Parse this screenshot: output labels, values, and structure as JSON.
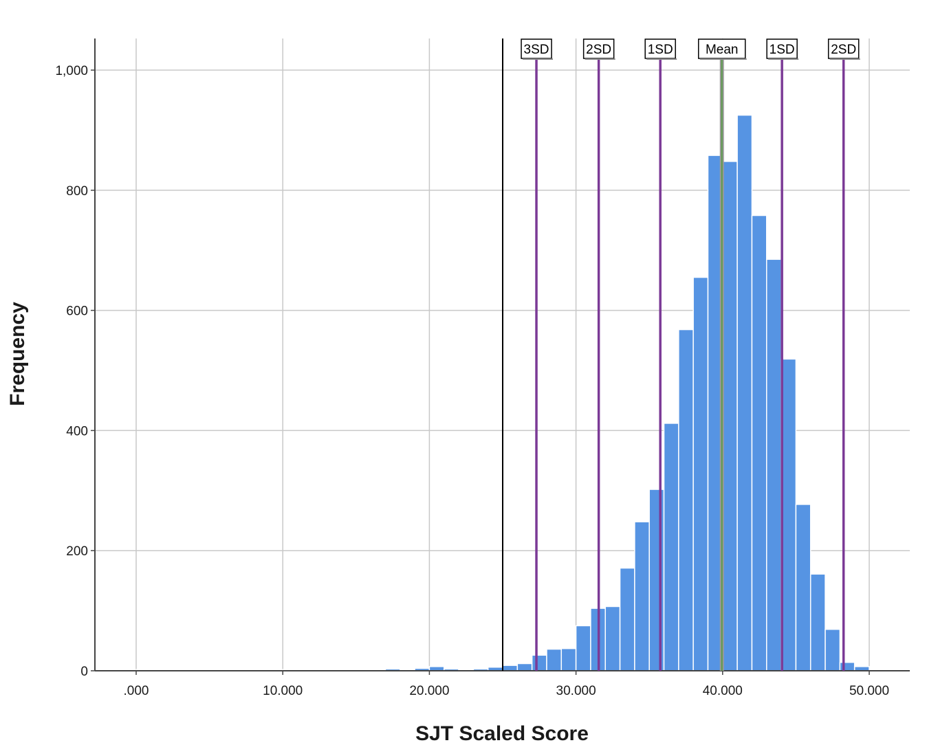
{
  "chart_data": {
    "type": "bar",
    "xlabel": "SJT Scaled Score",
    "ylabel": "Frequency",
    "xlim": [
      0,
      50000
    ],
    "ylim": [
      0,
      1000
    ],
    "x_ticks": [
      {
        "value": 0,
        "label": ".000"
      },
      {
        "value": 10000,
        "label": "10.000"
      },
      {
        "value": 20000,
        "label": "20.000"
      },
      {
        "value": 30000,
        "label": "30.000"
      },
      {
        "value": 40000,
        "label": "40.000"
      },
      {
        "value": 50000,
        "label": "50.000"
      }
    ],
    "y_ticks": [
      {
        "value": 0,
        "label": "0"
      },
      {
        "value": 200,
        "label": "200"
      },
      {
        "value": 400,
        "label": "400"
      },
      {
        "value": 600,
        "label": "600"
      },
      {
        "value": 800,
        "label": "800"
      },
      {
        "value": 1000,
        "label": "1,000"
      }
    ],
    "grid": true,
    "bar_color": "#5694e3",
    "bins": [
      {
        "x0": 0,
        "x1": 2000,
        "count": 2
      },
      {
        "x0": 5000,
        "x1": 10000,
        "count": 2
      },
      {
        "x0": 11000,
        "x1": 15000,
        "count": 2
      },
      {
        "x0": 16000,
        "x1": 17000,
        "count": 1
      },
      {
        "x0": 17000,
        "x1": 18000,
        "count": 3
      },
      {
        "x0": 18000,
        "x1": 19000,
        "count": 2
      },
      {
        "x0": 19000,
        "x1": 20000,
        "count": 4
      },
      {
        "x0": 20000,
        "x1": 21000,
        "count": 7
      },
      {
        "x0": 21000,
        "x1": 22000,
        "count": 3
      },
      {
        "x0": 22000,
        "x1": 23000,
        "count": 2
      },
      {
        "x0": 23000,
        "x1": 24000,
        "count": 3
      },
      {
        "x0": 24000,
        "x1": 25000,
        "count": 6
      },
      {
        "x0": 25000,
        "x1": 26000,
        "count": 9
      },
      {
        "x0": 26000,
        "x1": 27000,
        "count": 12
      },
      {
        "x0": 27000,
        "x1": 28000,
        "count": 26
      },
      {
        "x0": 28000,
        "x1": 29000,
        "count": 36
      },
      {
        "x0": 29000,
        "x1": 30000,
        "count": 37
      },
      {
        "x0": 30000,
        "x1": 31000,
        "count": 75
      },
      {
        "x0": 31000,
        "x1": 32000,
        "count": 104
      },
      {
        "x0": 32000,
        "x1": 33000,
        "count": 107
      },
      {
        "x0": 33000,
        "x1": 34000,
        "count": 171
      },
      {
        "x0": 34000,
        "x1": 35000,
        "count": 248
      },
      {
        "x0": 35000,
        "x1": 36000,
        "count": 302
      },
      {
        "x0": 36000,
        "x1": 37000,
        "count": 412
      },
      {
        "x0": 37000,
        "x1": 38000,
        "count": 568
      },
      {
        "x0": 38000,
        "x1": 39000,
        "count": 655
      },
      {
        "x0": 39000,
        "x1": 40000,
        "count": 858
      },
      {
        "x0": 40000,
        "x1": 41000,
        "count": 848
      },
      {
        "x0": 41000,
        "x1": 42000,
        "count": 925
      },
      {
        "x0": 42000,
        "x1": 43000,
        "count": 758
      },
      {
        "x0": 43000,
        "x1": 44000,
        "count": 685
      },
      {
        "x0": 44000,
        "x1": 45000,
        "count": 519
      },
      {
        "x0": 45000,
        "x1": 46000,
        "count": 277
      },
      {
        "x0": 46000,
        "x1": 47000,
        "count": 161
      },
      {
        "x0": 47000,
        "x1": 48000,
        "count": 69
      },
      {
        "x0": 48000,
        "x1": 49000,
        "count": 14
      },
      {
        "x0": 49000,
        "x1": 50000,
        "count": 7
      }
    ],
    "reference_lines": [
      {
        "x": 25000,
        "color": "#000000",
        "label": ""
      },
      {
        "x": 27300,
        "color": "#7b3a96",
        "label": "3SD"
      },
      {
        "x": 31550,
        "color": "#7b3a96",
        "label": "2SD"
      },
      {
        "x": 35750,
        "color": "#7b3a96",
        "label": "1SD"
      },
      {
        "x": 39950,
        "color": "#5a9a4a",
        "label": "Mean"
      },
      {
        "x": 44050,
        "color": "#7b3a96",
        "label": "1SD"
      },
      {
        "x": 48250,
        "color": "#7b3a96",
        "label": "2SD"
      }
    ]
  }
}
